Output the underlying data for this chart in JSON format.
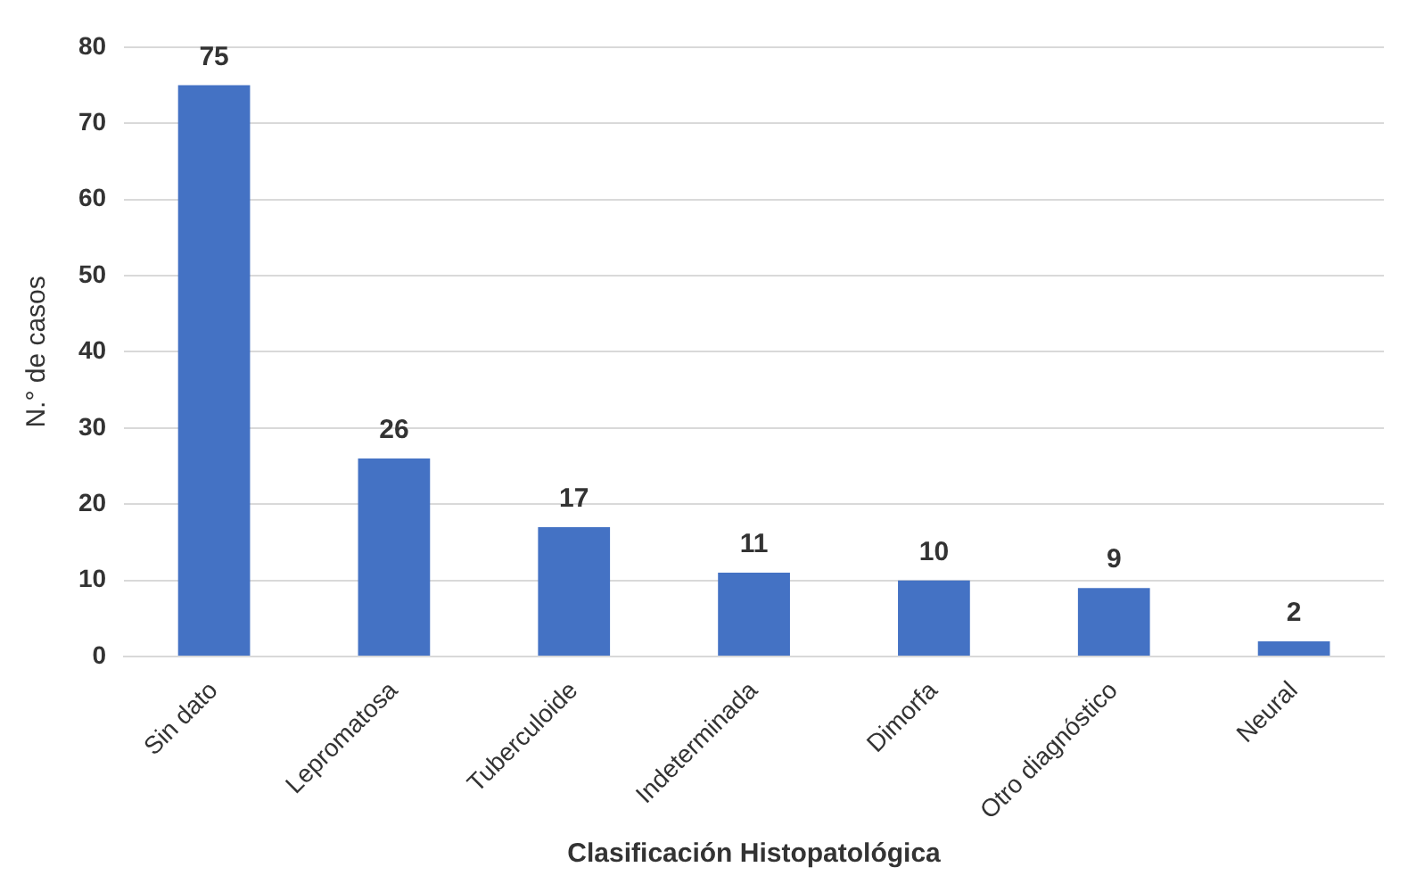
{
  "chart_data": {
    "type": "bar",
    "xlabel": "Clasificación Histopatológica",
    "ylabel": "N.° de casos",
    "categories": [
      "Sin dato",
      "Lepromatosa",
      "Tuberculoide",
      "Indeterminada",
      "Dimorfa",
      "Otro diagnóstico",
      "Neural"
    ],
    "values": [
      75,
      26,
      17,
      11,
      10,
      9,
      2
    ],
    "color": "#4472c4",
    "ylim": [
      0,
      80
    ],
    "yticks": [
      0,
      10,
      20,
      30,
      40,
      50,
      60,
      70,
      80
    ],
    "grid": "y",
    "data_labels": true,
    "legend": false
  }
}
